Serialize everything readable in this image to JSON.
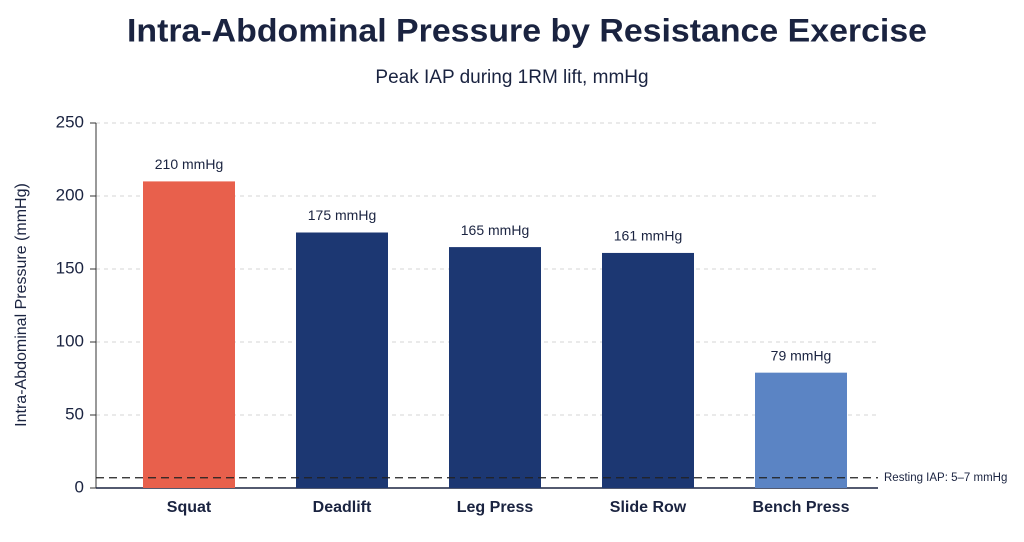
{
  "chart_data": {
    "type": "bar",
    "title": "Intra-Abdominal Pressure by Resistance Exercise",
    "subtitle": "Peak IAP during 1RM lift, mmHg",
    "y_label": "Intra-Abdominal Pressure (mmHg)",
    "categories": [
      "Squat",
      "Deadlift",
      "Leg Press",
      "Slide Row",
      "Bench Press"
    ],
    "values": [
      210,
      175,
      165,
      161,
      79
    ],
    "value_labels": [
      "210 mmHg",
      "175 mmHg",
      "165 mmHg",
      "161 mmHg",
      "79 mmHg"
    ],
    "colors": [
      "#e8604c",
      "#1c3772",
      "#1c3772",
      "#1c3772",
      "#5b84c4"
    ],
    "ylim": [
      0,
      250
    ],
    "yticks": [
      0,
      50,
      100,
      150,
      200,
      250
    ],
    "grid": true,
    "reference_line": {
      "value": 7,
      "label": "Resting IAP: 5–7 mmHg"
    }
  }
}
